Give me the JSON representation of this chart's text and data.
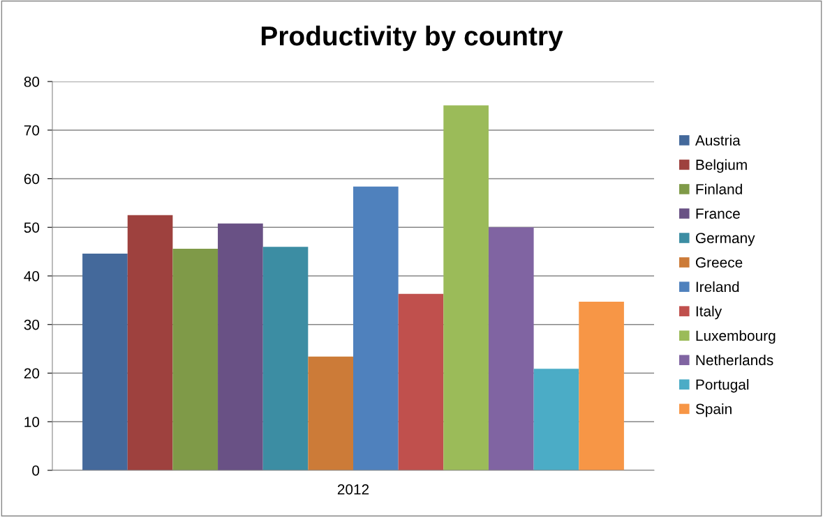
{
  "chart_data": {
    "type": "bar",
    "title": "Productivity by country",
    "categories": [
      "2012"
    ],
    "series": [
      {
        "name": "Austria",
        "color": "#44699b",
        "values": [
          44.6
        ]
      },
      {
        "name": "Belgium",
        "color": "#9e413e",
        "values": [
          52.5
        ]
      },
      {
        "name": "Finland",
        "color": "#7f9a48",
        "values": [
          45.6
        ]
      },
      {
        "name": "France",
        "color": "#695185",
        "values": [
          50.8
        ]
      },
      {
        "name": "Germany",
        "color": "#3c8da3",
        "values": [
          46.0
        ]
      },
      {
        "name": "Greece",
        "color": "#cc7b38",
        "values": [
          23.4
        ]
      },
      {
        "name": "Ireland",
        "color": "#4f81bd",
        "values": [
          58.4
        ]
      },
      {
        "name": "Italy",
        "color": "#c0504d",
        "values": [
          36.3
        ]
      },
      {
        "name": "Luxembourg",
        "color": "#9bbb59",
        "values": [
          75.1
        ]
      },
      {
        "name": "Netherlands",
        "color": "#8064a2",
        "values": [
          50.0
        ]
      },
      {
        "name": "Portugal",
        "color": "#4bacc6",
        "values": [
          20.9
        ]
      },
      {
        "name": "Spain",
        "color": "#f79646",
        "values": [
          34.7
        ]
      }
    ],
    "ylim": [
      0,
      80
    ],
    "yticks": [
      0,
      10,
      20,
      30,
      40,
      50,
      60,
      70,
      80
    ],
    "grid": "y",
    "legend": "right"
  }
}
